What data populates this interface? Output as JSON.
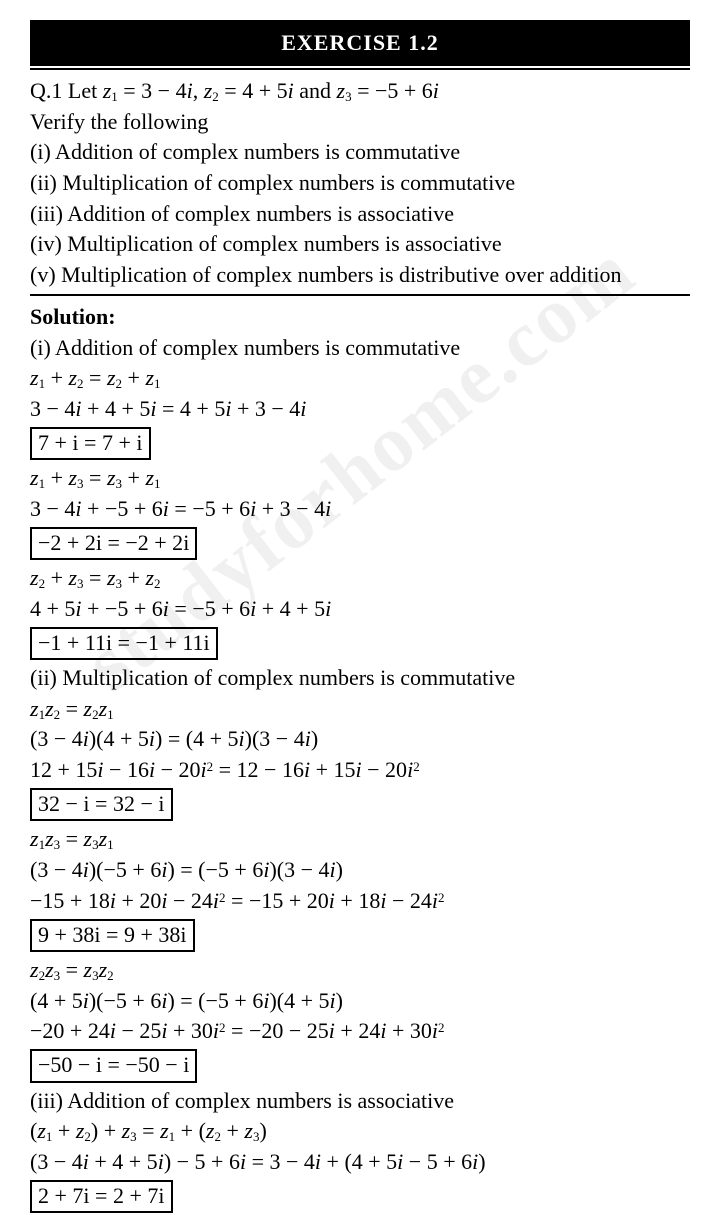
{
  "watermark": "studyforhome.com",
  "banner": "EXERCISE 1.2",
  "question": {
    "stem_prefix": "Q.1 Let ",
    "z1": "z",
    "z1s": "1",
    "eq1": " = 3 − 4",
    "iv": "i",
    "sep1": ", ",
    "z2": "z",
    "z2s": "2",
    "eq2": " = 4 + 5",
    "sep2": " and ",
    "z3": "z",
    "z3s": "3",
    "eq3": " = −5 + 6",
    "verify": "Verify the following",
    "lines": [
      "(i) Addition of complex numbers is commutative",
      "(ii) Multiplication of complex numbers is commutative",
      "(iii) Addition of complex numbers is associative",
      "(iv) Multiplication of complex numbers is associative",
      "(v) Multiplication of complex numbers is distributive over addition"
    ]
  },
  "solution_label": "Solution:",
  "sol": {
    "p1_head": "(i) Addition of complex numbers is commutative",
    "p1a": "3 − 4",
    "p1b": " + 4 + 5",
    "p1c": " = 4 + 5",
    "p1d": " + 3 − 4",
    "p1box_l": "7 + ",
    "p1box_m": " = 7 + ",
    "p1e": "3 − 4",
    "p1f": " + −5 + 6",
    "p1g": " = −5 + 6",
    "p1h": " + 3 − 4",
    "p1box2_l": "−2 + 2",
    "p1box2_m": " = −2 + 2",
    "p1i": "4 + 5",
    "p1j": " + −5 + 6",
    "p1k": " = −5 + 6",
    "p1l": " + 4 + 5",
    "p1box3_l": "−1 + 11",
    "p1box3_m": " = −1 + 11",
    "p2_head": "(ii) Multiplication of complex numbers is commutative",
    "p2a": "(3 − 4",
    "p2b": ")(4 + 5",
    "p2c": ") = (4 + 5",
    "p2d": ")(3 − 4",
    "p2e": ")",
    "p2f": "12 + 15",
    "p2g": " − 16",
    "p2h": " − 20",
    "p2i": " = 12 − 16",
    "p2j": " + 15",
    "p2k": " − 20",
    "p2box_l": "32 − ",
    "p2box_m": " = 32 − ",
    "p2l": "(3 − 4",
    "p2m": ")(−5 + 6",
    "p2n": ") = (−5 + 6",
    "p2o": ")(3 − 4",
    "p2p": ")",
    "p2q": "−15 + 18",
    "p2r": " + 20",
    "p2s": " − 24",
    "p2t": " = −15 + 20",
    "p2u": " + 18",
    "p2v": " − 24",
    "p2box2_l": "9 + 38",
    "p2box2_m": " = 9 + 38",
    "p2w": "(4 + 5",
    "p2x": ")(−5 + 6",
    "p2y": ") = (−5 + 6",
    "p2z": ")(4 + 5",
    "p2aa": ")",
    "p2ab": "−20 + 24",
    "p2ac": " − 25",
    "p2ad": " + 30",
    "p2ae": " = −20 − 25",
    "p2af": " + 24",
    "p2ag": " + 30",
    "p2box3_l": "−50 − ",
    "p2box3_m": " = −50 − ",
    "p3_head": "(iii) Addition of complex numbers is associative",
    "p3a": "(3 − 4",
    "p3b": " + 4 + 5",
    "p3c": ") − 5 + 6",
    "p3d": " = 3 − 4",
    "p3e": " + (4 + 5",
    "p3f": " − 5 + 6",
    "p3g": ")",
    "p3box_l": "2 + 7",
    "p3box_m": " = 2 + 7"
  },
  "z": "z"
}
